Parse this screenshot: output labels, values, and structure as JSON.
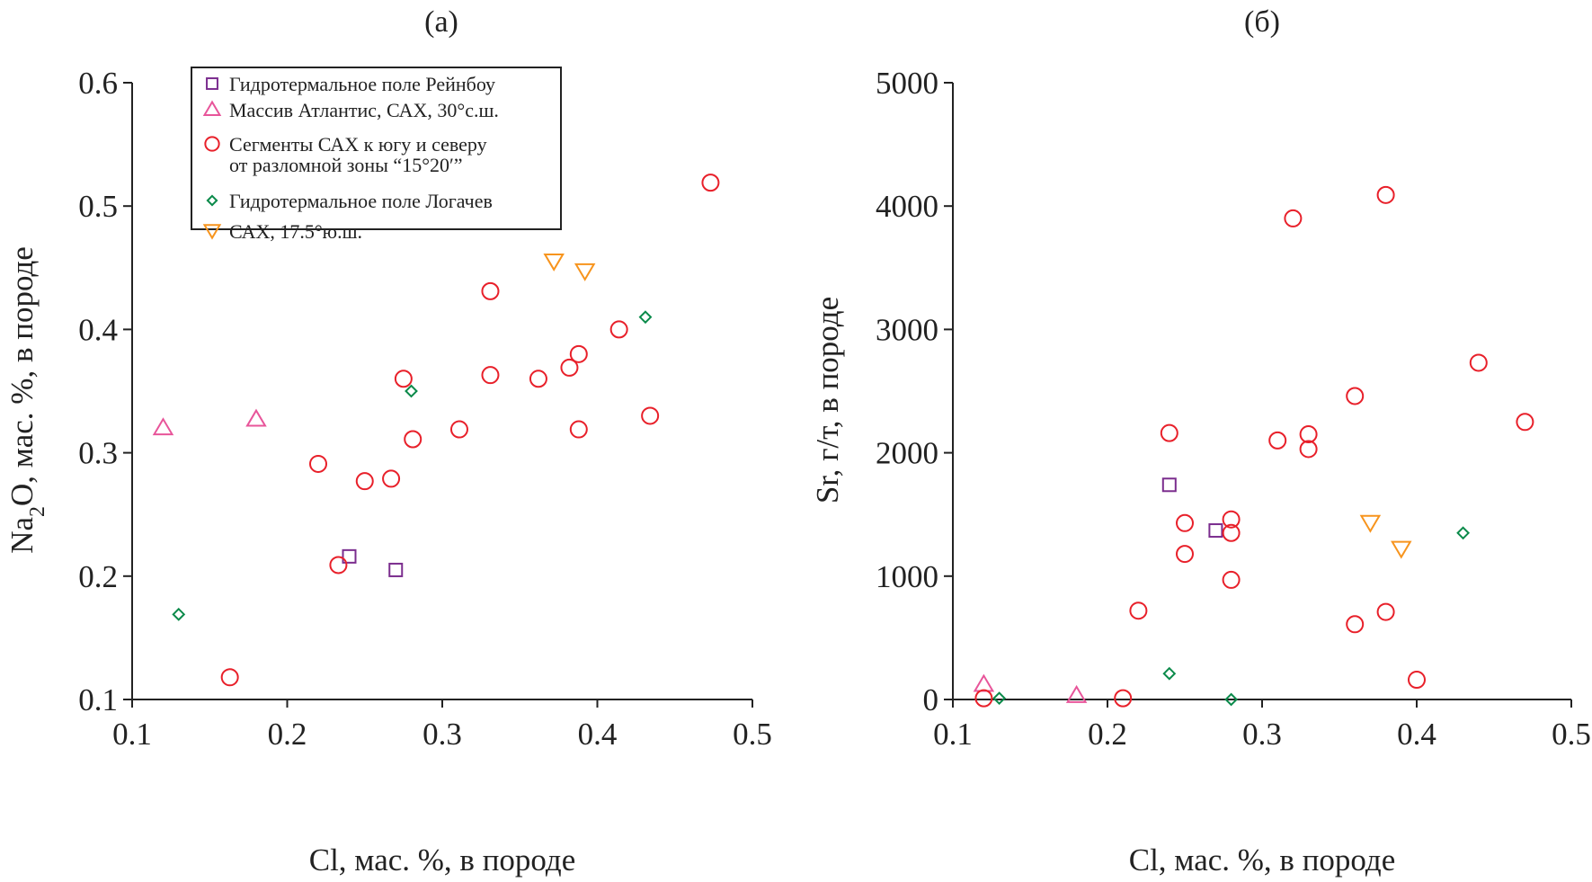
{
  "colors": {
    "rainbow": "#7b2d8e",
    "atlantis": "#e8559a",
    "segments": "#e8202a",
    "logatchev": "#0a8a4a",
    "sax175": "#f7941d"
  },
  "legend": {
    "placement": "top-left",
    "entries": [
      {
        "key": "rainbow",
        "marker": "square",
        "lines": [
          "Гидротермальное  поле Рейнбоу"
        ]
      },
      {
        "key": "atlantis",
        "marker": "triangle-up",
        "lines": [
          "Массив Атлантис, САХ, 30°с.ш."
        ]
      },
      {
        "key": "segments",
        "marker": "circle",
        "lines": [
          "Сегменты САХ к югу и северу",
          "от разломной зоны “15°20′”"
        ]
      },
      {
        "key": "logatchev",
        "marker": "diamond",
        "lines": [
          "Гидротермальное  поле Логачев"
        ]
      },
      {
        "key": "sax175",
        "marker": "triangle-down",
        "lines": [
          "САХ, 17.5°ю.ш."
        ]
      }
    ]
  },
  "chart_data": [
    {
      "type": "scatter",
      "title": "(a)",
      "xlabel": "Cl, мас. %, в породе",
      "ylabel_parts": [
        "Na",
        "2",
        "O, мас. %, в породе"
      ],
      "xlim": [
        0.1,
        0.5
      ],
      "ylim": [
        0.1,
        0.6
      ],
      "xticks": [
        "0.1",
        "0.2",
        "0.3",
        "0.4",
        "0.5"
      ],
      "yticks": [
        "0.1",
        "0.2",
        "0.3",
        "0.4",
        "0.5",
        "0.6"
      ],
      "grid": false,
      "series": [
        {
          "key": "rainbow",
          "points": [
            [
              0.24,
              0.216
            ],
            [
              0.27,
              0.205
            ]
          ]
        },
        {
          "key": "atlantis",
          "points": [
            [
              0.12,
              0.32
            ],
            [
              0.18,
              0.327
            ]
          ]
        },
        {
          "key": "segments",
          "points": [
            [
              0.163,
              0.118
            ],
            [
              0.22,
              0.291
            ],
            [
              0.233,
              0.209
            ],
            [
              0.25,
              0.277
            ],
            [
              0.267,
              0.279
            ],
            [
              0.275,
              0.36
            ],
            [
              0.281,
              0.311
            ],
            [
              0.311,
              0.319
            ],
            [
              0.331,
              0.431
            ],
            [
              0.331,
              0.363
            ],
            [
              0.362,
              0.36
            ],
            [
              0.382,
              0.369
            ],
            [
              0.388,
              0.38
            ],
            [
              0.388,
              0.319
            ],
            [
              0.414,
              0.4
            ],
            [
              0.434,
              0.33
            ],
            [
              0.473,
              0.519
            ]
          ]
        },
        {
          "key": "logatchev",
          "points": [
            [
              0.13,
              0.169
            ],
            [
              0.28,
              0.35
            ],
            [
              0.431,
              0.41
            ]
          ]
        },
        {
          "key": "sax175",
          "points": [
            [
              0.372,
              0.455
            ],
            [
              0.392,
              0.447
            ]
          ]
        }
      ]
    },
    {
      "type": "scatter",
      "title": "(б)",
      "xlabel": "Cl, мас. %, в породе",
      "ylabel_parts": [
        "Sr, г/т, в породе"
      ],
      "xlim": [
        0.1,
        0.5
      ],
      "ylim": [
        0,
        5000
      ],
      "xticks": [
        "0.1",
        "0.2",
        "0.3",
        "0.4",
        "0.5"
      ],
      "yticks": [
        "0",
        "1000",
        "2000",
        "3000",
        "4000",
        "5000"
      ],
      "grid": false,
      "series": [
        {
          "key": "rainbow",
          "points": [
            [
              0.24,
              1740
            ],
            [
              0.27,
              1370
            ]
          ]
        },
        {
          "key": "atlantis",
          "points": [
            [
              0.12,
              120
            ],
            [
              0.18,
              30
            ]
          ]
        },
        {
          "key": "segments",
          "points": [
            [
              0.12,
              10
            ],
            [
              0.21,
              10
            ],
            [
              0.22,
              720
            ],
            [
              0.24,
              2160
            ],
            [
              0.25,
              1430
            ],
            [
              0.25,
              1180
            ],
            [
              0.28,
              1460
            ],
            [
              0.28,
              1350
            ],
            [
              0.28,
              970
            ],
            [
              0.31,
              2100
            ],
            [
              0.32,
              3900
            ],
            [
              0.33,
              2150
            ],
            [
              0.33,
              2030
            ],
            [
              0.36,
              2460
            ],
            [
              0.36,
              610
            ],
            [
              0.38,
              4090
            ],
            [
              0.38,
              710
            ],
            [
              0.4,
              160
            ],
            [
              0.44,
              2730
            ],
            [
              0.47,
              2250
            ]
          ]
        },
        {
          "key": "logatchev",
          "points": [
            [
              0.13,
              10
            ],
            [
              0.24,
              210
            ],
            [
              0.28,
              0
            ],
            [
              0.43,
              1350
            ]
          ]
        },
        {
          "key": "sax175",
          "points": [
            [
              0.37,
              1430
            ],
            [
              0.39,
              1220
            ]
          ]
        }
      ]
    }
  ]
}
